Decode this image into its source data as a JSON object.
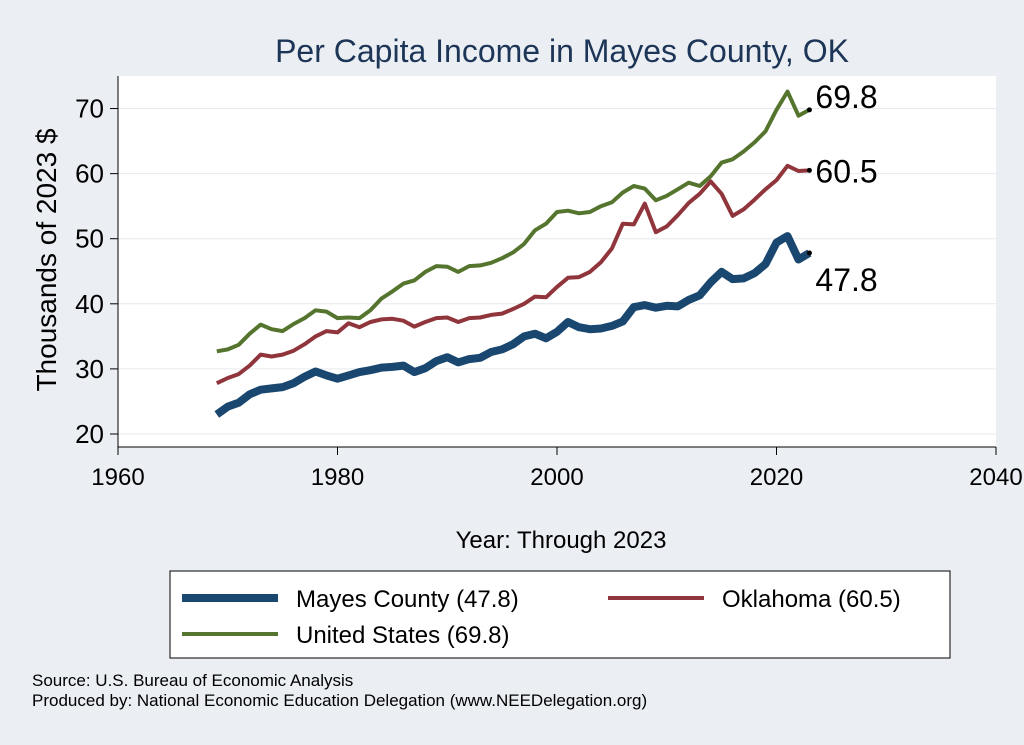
{
  "colors": {
    "background": "#ebeff3",
    "plot_background": "#ffffff",
    "title": "#1d3557",
    "gridline": "#e6eaee",
    "mayes": "#1a476f",
    "oklahoma": "#90353b",
    "united_states": "#55752f"
  },
  "chart_data": {
    "type": "line",
    "title": "Per Capita Income in Mayes County, OK",
    "xlabel": "Year: Through 2023",
    "ylabel": "Thousands of 2023 $",
    "xlim": [
      1960,
      2040
    ],
    "ylim": [
      18,
      75
    ],
    "xticks": [
      1960,
      1980,
      2000,
      2020,
      2040
    ],
    "yticks": [
      20,
      30,
      40,
      50,
      60,
      70
    ],
    "grid": true,
    "legend_position": "bottom",
    "series": [
      {
        "name": "Mayes County (47.8)",
        "key": "mayes",
        "end_label": "47.8",
        "x": [
          1969,
          1970,
          1971,
          1972,
          1973,
          1974,
          1975,
          1976,
          1977,
          1978,
          1979,
          1980,
          1981,
          1982,
          1983,
          1984,
          1985,
          1986,
          1987,
          1988,
          1989,
          1990,
          1991,
          1992,
          1993,
          1994,
          1995,
          1996,
          1997,
          1998,
          1999,
          2000,
          2001,
          2002,
          2003,
          2004,
          2005,
          2006,
          2007,
          2008,
          2009,
          2010,
          2011,
          2012,
          2013,
          2014,
          2015,
          2016,
          2017,
          2018,
          2019,
          2020,
          2021,
          2022,
          2023
        ],
        "y": [
          23.0,
          24.2,
          24.8,
          26.1,
          26.8,
          27.0,
          27.2,
          27.8,
          28.8,
          29.6,
          29.0,
          28.5,
          29.0,
          29.5,
          29.8,
          30.2,
          30.3,
          30.5,
          29.5,
          30.1,
          31.2,
          31.8,
          31.0,
          31.5,
          31.7,
          32.6,
          33.0,
          33.8,
          35.0,
          35.4,
          34.7,
          35.7,
          37.2,
          36.4,
          36.1,
          36.2,
          36.6,
          37.3,
          39.5,
          39.8,
          39.4,
          39.7,
          39.6,
          40.6,
          41.3,
          43.3,
          44.9,
          43.8,
          43.9,
          44.7,
          46.1,
          49.4,
          50.4,
          46.8,
          47.8
        ]
      },
      {
        "name": "Oklahoma (60.5)",
        "key": "oklahoma",
        "end_label": "60.5",
        "x": [
          1969,
          1970,
          1971,
          1972,
          1973,
          1974,
          1975,
          1976,
          1977,
          1978,
          1979,
          1980,
          1981,
          1982,
          1983,
          1984,
          1985,
          1986,
          1987,
          1988,
          1989,
          1990,
          1991,
          1992,
          1993,
          1994,
          1995,
          1996,
          1997,
          1998,
          1999,
          2000,
          2001,
          2002,
          2003,
          2004,
          2005,
          2006,
          2007,
          2008,
          2009,
          2010,
          2011,
          2012,
          2013,
          2014,
          2015,
          2016,
          2017,
          2018,
          2019,
          2020,
          2021,
          2022,
          2023
        ],
        "y": [
          27.8,
          28.6,
          29.2,
          30.5,
          32.2,
          31.9,
          32.2,
          32.8,
          33.8,
          35.0,
          35.8,
          35.6,
          37.0,
          36.4,
          37.2,
          37.6,
          37.7,
          37.4,
          36.5,
          37.2,
          37.8,
          37.9,
          37.2,
          37.8,
          37.9,
          38.3,
          38.5,
          39.2,
          40.0,
          41.1,
          41.0,
          42.6,
          44.0,
          44.1,
          44.9,
          46.4,
          48.5,
          52.3,
          52.2,
          55.4,
          51.0,
          51.9,
          53.6,
          55.5,
          56.9,
          58.8,
          56.9,
          53.5,
          54.5,
          56.0,
          57.6,
          59.0,
          61.2,
          60.4,
          60.5
        ]
      },
      {
        "name": "United States (69.8)",
        "key": "united_states",
        "end_label": "69.8",
        "x": [
          1969,
          1970,
          1971,
          1972,
          1973,
          1974,
          1975,
          1976,
          1977,
          1978,
          1979,
          1980,
          1981,
          1982,
          1983,
          1984,
          1985,
          1986,
          1987,
          1988,
          1989,
          1990,
          1991,
          1992,
          1993,
          1994,
          1995,
          1996,
          1997,
          1998,
          1999,
          2000,
          2001,
          2002,
          2003,
          2004,
          2005,
          2006,
          2007,
          2008,
          2009,
          2010,
          2011,
          2012,
          2013,
          2014,
          2015,
          2016,
          2017,
          2018,
          2019,
          2020,
          2021,
          2022,
          2023
        ],
        "y": [
          32.7,
          33.0,
          33.7,
          35.4,
          36.8,
          36.1,
          35.8,
          36.9,
          37.8,
          39.0,
          38.8,
          37.8,
          37.9,
          37.8,
          39.0,
          40.8,
          41.9,
          43.1,
          43.6,
          44.9,
          45.8,
          45.7,
          44.9,
          45.8,
          45.9,
          46.3,
          47.0,
          47.9,
          49.2,
          51.3,
          52.3,
          54.1,
          54.3,
          53.9,
          54.1,
          55.0,
          55.6,
          57.1,
          58.1,
          57.7,
          55.9,
          56.6,
          57.6,
          58.6,
          58.1,
          59.6,
          61.7,
          62.2,
          63.4,
          64.8,
          66.5,
          69.8,
          72.6,
          68.9,
          69.8
        ]
      }
    ]
  },
  "footer": {
    "source": "Source: U.S. Bureau of Economic Analysis",
    "produced_by": "Produced by: National Economic Education Delegation (www.NEEDelegation.org)"
  }
}
